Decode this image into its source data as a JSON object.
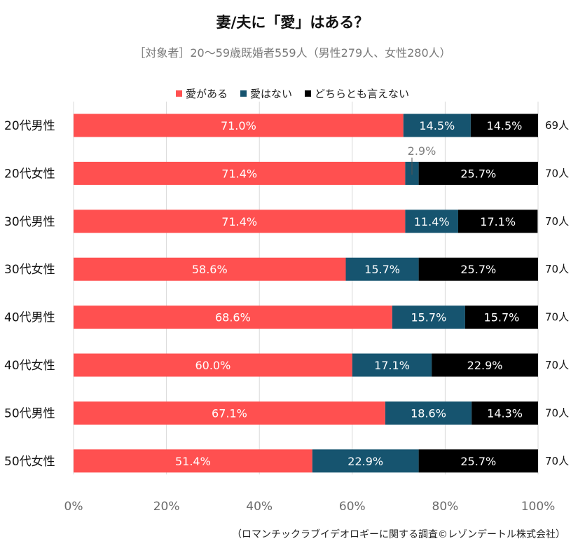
{
  "title": "妻/夫に「愛」はある？",
  "subtitle": "［対象者］20～59歳既婚者559人（男性279人、女性280人）",
  "source": "（ロマンチックラブイデオロギーに関する調査©レゾンデートル株式会社）",
  "colors": {
    "love": "#ff5050",
    "no_love": "#16546f",
    "unsure": "#000000",
    "grid": "#d9d9d9"
  },
  "chart_data": {
    "type": "bar",
    "orientation": "horizontal",
    "stacked": "percent",
    "categories": [
      "20代男性",
      "20代女性",
      "30代男性",
      "30代女性",
      "40代男性",
      "40代女性",
      "50代男性",
      "50代女性"
    ],
    "series": [
      {
        "name": "愛がある",
        "values": [
          71.0,
          71.4,
          71.4,
          58.6,
          68.6,
          60.0,
          67.1,
          51.4
        ],
        "labels": [
          "71.0%",
          "71.4%",
          "71.4%",
          "58.6%",
          "68.6%",
          "60.0%",
          "67.1%",
          "51.4%"
        ]
      },
      {
        "name": "愛はない",
        "values": [
          14.5,
          2.9,
          11.4,
          15.7,
          15.7,
          17.1,
          18.6,
          22.9
        ],
        "labels": [
          "14.5%",
          "2.9%",
          "11.4%",
          "15.7%",
          "15.7%",
          "17.1%",
          "18.6%",
          "22.9%"
        ]
      },
      {
        "name": "どちらとも言えない",
        "values": [
          14.5,
          25.7,
          17.1,
          25.7,
          15.7,
          22.9,
          14.3,
          25.7
        ],
        "labels": [
          "14.5%",
          "25.7%",
          "17.1%",
          "25.7%",
          "15.7%",
          "22.9%",
          "14.3%",
          "25.7%"
        ]
      }
    ],
    "n_labels": [
      "69人",
      "70人",
      "70人",
      "70人",
      "70人",
      "70人",
      "70人",
      "70人"
    ],
    "xaxis": {
      "ticks": [
        "0%",
        "20%",
        "40%",
        "60%",
        "80%",
        "100%"
      ],
      "range": [
        0,
        100
      ]
    },
    "legend_position": "top",
    "grid": true
  }
}
